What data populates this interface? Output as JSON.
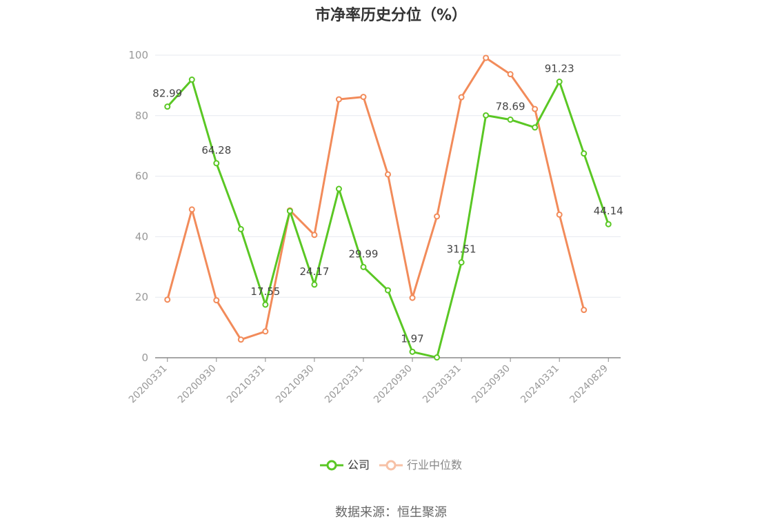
{
  "chart_data": {
    "type": "line",
    "title": "市净率历史分位（%）",
    "ylim": [
      0,
      100
    ],
    "yticks": [
      0,
      20,
      40,
      60,
      80,
      100
    ],
    "x_tick_labels": [
      "20200331",
      "20200930",
      "20210331",
      "20210930",
      "20220331",
      "20220930",
      "20230331",
      "20230930",
      "20240331",
      "20240829"
    ],
    "grid": true,
    "legend_position": "bottom",
    "series": [
      {
        "name": "公司",
        "color": "#5ac724",
        "values": [
          82.99,
          91.9,
          64.28,
          42.5,
          17.55,
          48.5,
          24.17,
          55.8,
          29.99,
          22.3,
          1.97,
          0.1,
          31.51,
          80.1,
          78.69,
          76.1,
          91.23,
          67.5,
          44.14
        ],
        "data_labels": [
          {
            "index": 0,
            "text": "82.99"
          },
          {
            "index": 2,
            "text": "64.28"
          },
          {
            "index": 4,
            "text": "17.55"
          },
          {
            "index": 6,
            "text": "24.17"
          },
          {
            "index": 8,
            "text": "29.99"
          },
          {
            "index": 10,
            "text": "1.97"
          },
          {
            "index": 12,
            "text": "31.51"
          },
          {
            "index": 14,
            "text": "78.69"
          },
          {
            "index": 16,
            "text": "91.23"
          },
          {
            "index": 18,
            "text": "44.14"
          }
        ]
      },
      {
        "name": "行业中位数",
        "color": "#f28b5a",
        "values": [
          19.2,
          49.0,
          19.0,
          6.0,
          8.7,
          48.7,
          40.6,
          85.4,
          86.2,
          60.6,
          19.8,
          46.7,
          86.1,
          99.1,
          93.7,
          82.2,
          47.3,
          15.8,
          null
        ]
      }
    ]
  },
  "source": "数据来源：恒生聚源"
}
